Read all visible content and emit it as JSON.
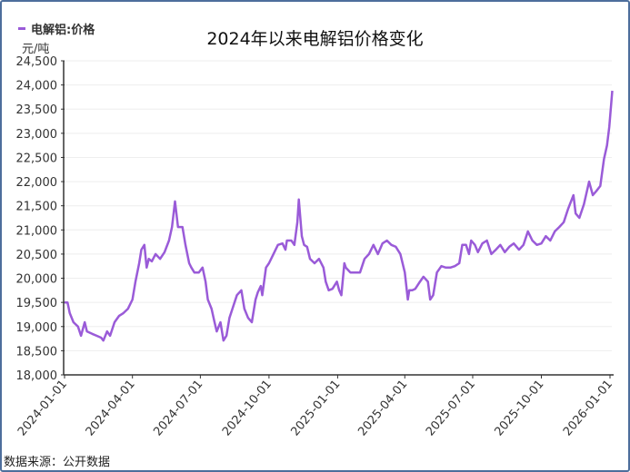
{
  "chart_data": {
    "type": "line",
    "title": "2024年以来电解铝价格变化",
    "ylabel": "元/吨",
    "xlabel": "",
    "source": "数据来源：公开数据",
    "legend": {
      "position": "top-left",
      "entries": [
        "电解铝:价格"
      ]
    },
    "colors": {
      "line": "#9a5bd8",
      "axis": "#333333",
      "grid": "#eeeeee",
      "frame": "#4d6e9c"
    },
    "ylim": [
      18000,
      24500
    ],
    "yticks": [
      "18,000",
      "18,500",
      "19,000",
      "19,500",
      "20,000",
      "20,500",
      "21,000",
      "21,500",
      "22,000",
      "22,500",
      "23,000",
      "23,500",
      "24,000",
      "24,500"
    ],
    "xlim_days": [
      0,
      735
    ],
    "start_date": "2024-01-01",
    "xticks": [
      {
        "label": "2024-01-01",
        "day": 0
      },
      {
        "label": "2024-04-01",
        "day": 91
      },
      {
        "label": "2024-07-01",
        "day": 182
      },
      {
        "label": "2024-10-01",
        "day": 274
      },
      {
        "label": "2025-01-01",
        "day": 366
      },
      {
        "label": "2025-04-01",
        "day": 456
      },
      {
        "label": "2025-07-01",
        "day": 547
      },
      {
        "label": "2025-10-01",
        "day": 639
      },
      {
        "label": "2026-01-01",
        "day": 731
      }
    ],
    "series": [
      {
        "name": "电解铝:价格",
        "points_day_value": [
          [
            0,
            19500
          ],
          [
            4,
            19500
          ],
          [
            7,
            19280
          ],
          [
            12,
            19090
          ],
          [
            18,
            19000
          ],
          [
            22,
            18810
          ],
          [
            27,
            19090
          ],
          [
            30,
            18900
          ],
          [
            37,
            18850
          ],
          [
            43,
            18810
          ],
          [
            49,
            18770
          ],
          [
            52,
            18710
          ],
          [
            57,
            18900
          ],
          [
            61,
            18810
          ],
          [
            67,
            19090
          ],
          [
            73,
            19220
          ],
          [
            79,
            19280
          ],
          [
            85,
            19370
          ],
          [
            91,
            19560
          ],
          [
            95,
            19930
          ],
          [
            100,
            20310
          ],
          [
            103,
            20590
          ],
          [
            107,
            20690
          ],
          [
            110,
            20220
          ],
          [
            113,
            20400
          ],
          [
            117,
            20350
          ],
          [
            122,
            20500
          ],
          [
            128,
            20400
          ],
          [
            134,
            20540
          ],
          [
            140,
            20780
          ],
          [
            144,
            21060
          ],
          [
            148,
            21590
          ],
          [
            152,
            21060
          ],
          [
            158,
            21060
          ],
          [
            162,
            20690
          ],
          [
            167,
            20310
          ],
          [
            170,
            20220
          ],
          [
            174,
            20120
          ],
          [
            180,
            20120
          ],
          [
            185,
            20220
          ],
          [
            189,
            19930
          ],
          [
            192,
            19560
          ],
          [
            197,
            19370
          ],
          [
            201,
            19090
          ],
          [
            204,
            18900
          ],
          [
            209,
            19090
          ],
          [
            213,
            18710
          ],
          [
            217,
            18810
          ],
          [
            221,
            19180
          ],
          [
            225,
            19370
          ],
          [
            231,
            19650
          ],
          [
            237,
            19750
          ],
          [
            241,
            19370
          ],
          [
            246,
            19180
          ],
          [
            251,
            19090
          ],
          [
            256,
            19560
          ],
          [
            259,
            19710
          ],
          [
            263,
            19840
          ],
          [
            265,
            19650
          ],
          [
            270,
            20220
          ],
          [
            274,
            20310
          ],
          [
            280,
            20500
          ],
          [
            286,
            20690
          ],
          [
            292,
            20720
          ],
          [
            296,
            20590
          ],
          [
            298,
            20780
          ],
          [
            304,
            20780
          ],
          [
            308,
            20690
          ],
          [
            312,
            21160
          ],
          [
            314,
            21630
          ],
          [
            318,
            20870
          ],
          [
            321,
            20690
          ],
          [
            325,
            20650
          ],
          [
            329,
            20400
          ],
          [
            335,
            20310
          ],
          [
            341,
            20400
          ],
          [
            347,
            20220
          ],
          [
            350,
            19930
          ],
          [
            354,
            19750
          ],
          [
            359,
            19780
          ],
          [
            365,
            19930
          ],
          [
            368,
            19750
          ],
          [
            371,
            19650
          ],
          [
            375,
            20310
          ],
          [
            377,
            20220
          ],
          [
            383,
            20120
          ],
          [
            389,
            20120
          ],
          [
            396,
            20120
          ],
          [
            402,
            20400
          ],
          [
            408,
            20500
          ],
          [
            414,
            20690
          ],
          [
            420,
            20500
          ],
          [
            426,
            20720
          ],
          [
            432,
            20780
          ],
          [
            438,
            20690
          ],
          [
            444,
            20650
          ],
          [
            450,
            20500
          ],
          [
            456,
            20120
          ],
          [
            460,
            19560
          ],
          [
            462,
            19750
          ],
          [
            466,
            19750
          ],
          [
            470,
            19780
          ],
          [
            475,
            19900
          ],
          [
            481,
            20030
          ],
          [
            487,
            19930
          ],
          [
            490,
            19560
          ],
          [
            494,
            19650
          ],
          [
            499,
            20120
          ],
          [
            505,
            20250
          ],
          [
            511,
            20220
          ],
          [
            517,
            20220
          ],
          [
            523,
            20250
          ],
          [
            529,
            20310
          ],
          [
            533,
            20690
          ],
          [
            538,
            20690
          ],
          [
            542,
            20500
          ],
          [
            545,
            20780
          ],
          [
            550,
            20690
          ],
          [
            554,
            20540
          ],
          [
            560,
            20720
          ],
          [
            566,
            20780
          ],
          [
            572,
            20500
          ],
          [
            578,
            20590
          ],
          [
            584,
            20690
          ],
          [
            590,
            20540
          ],
          [
            596,
            20650
          ],
          [
            602,
            20720
          ],
          [
            609,
            20590
          ],
          [
            615,
            20690
          ],
          [
            621,
            20970
          ],
          [
            627,
            20780
          ],
          [
            633,
            20690
          ],
          [
            639,
            20720
          ],
          [
            645,
            20870
          ],
          [
            651,
            20780
          ],
          [
            657,
            20970
          ],
          [
            663,
            21060
          ],
          [
            669,
            21160
          ],
          [
            675,
            21440
          ],
          [
            682,
            21720
          ],
          [
            685,
            21340
          ],
          [
            690,
            21250
          ],
          [
            696,
            21530
          ],
          [
            703,
            22000
          ],
          [
            708,
            21720
          ],
          [
            713,
            21810
          ],
          [
            718,
            21910
          ],
          [
            723,
            22470
          ],
          [
            727,
            22750
          ],
          [
            730,
            23130
          ],
          [
            734,
            23880
          ]
        ]
      }
    ]
  }
}
